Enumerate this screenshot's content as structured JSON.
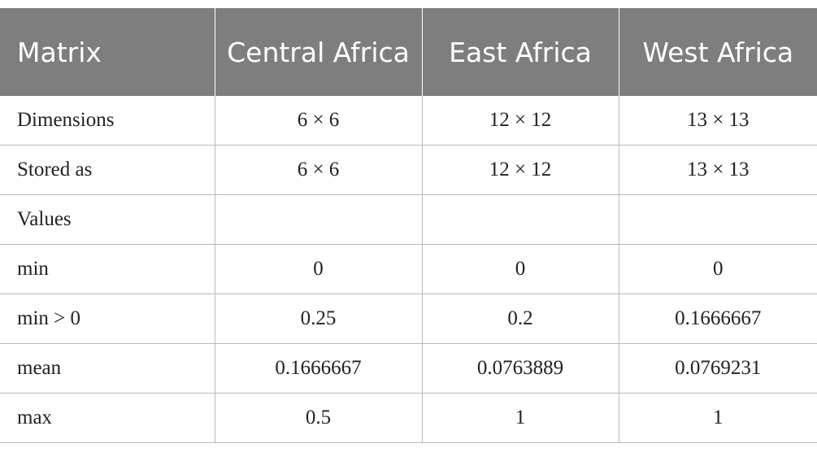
{
  "table": {
    "headers": [
      "Matrix",
      "Central Africa",
      "East Africa",
      "West Africa"
    ],
    "rows": [
      [
        "Dimensions",
        "6 × 6",
        "12 × 12",
        "13 × 13"
      ],
      [
        "Stored as",
        "6 × 6",
        "12 × 12",
        "13 × 13"
      ],
      [
        "Values",
        "",
        "",
        ""
      ],
      [
        "min",
        "0",
        "0",
        "0"
      ],
      [
        "min > 0",
        "0.25",
        "0.2",
        "0.1666667"
      ],
      [
        "mean",
        "0.1666667",
        "0.0763889",
        "0.0769231"
      ],
      [
        "max",
        "0.5",
        "1",
        "1"
      ]
    ]
  },
  "colors": {
    "header_bg": "#7d7e7d",
    "header_text": "#ffffff",
    "grid_line": "#b9b9b9"
  }
}
